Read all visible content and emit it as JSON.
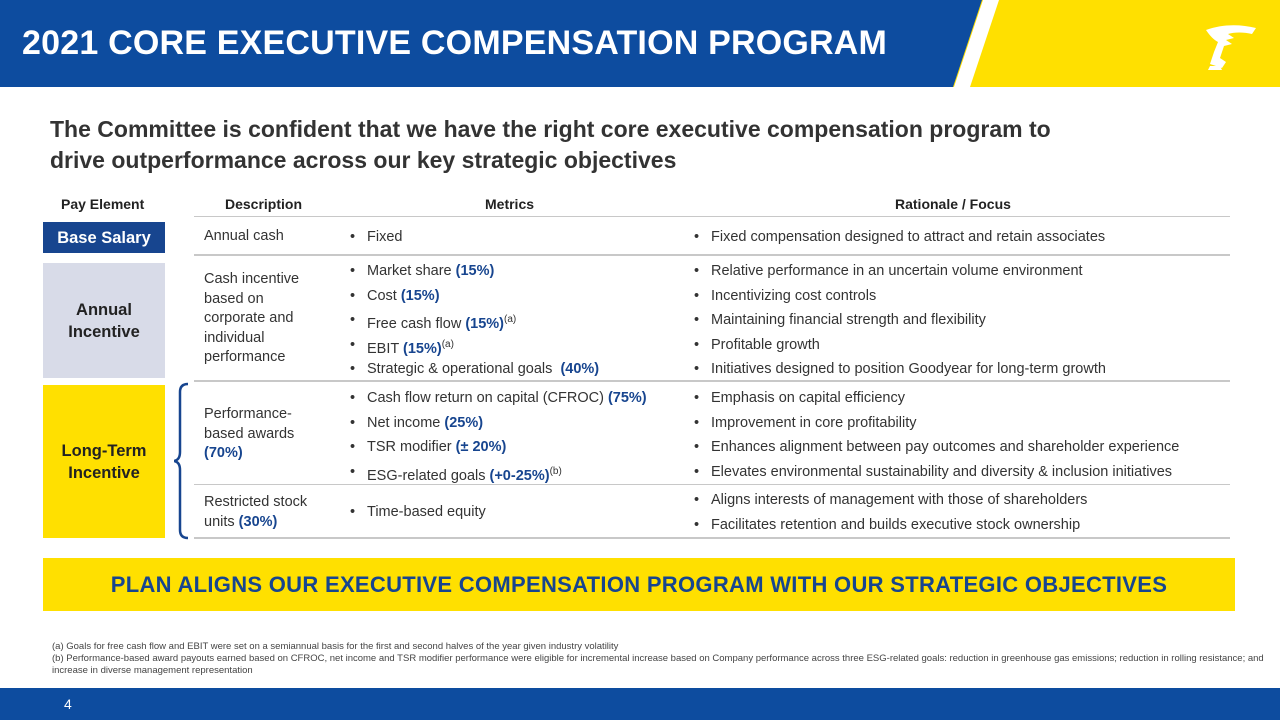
{
  "header": {
    "title": "2021 CORE EXECUTIVE COMPENSATION PROGRAM",
    "logo_icon": "winged-foot-logo-icon"
  },
  "subtitle": {
    "line1": "The Committee is confident that we have the right core executive compensation program to",
    "line2": "drive outperformance across our key strategic objectives"
  },
  "table": {
    "headers": {
      "pay_element": "Pay Element",
      "description": "Description",
      "metrics": "Metrics",
      "rationale": "Rationale / Focus"
    },
    "base_salary": {
      "label": "Base Salary",
      "description": "Annual cash",
      "metrics": [
        "Fixed"
      ],
      "rationale": [
        "Fixed compensation designed to attract and retain associates"
      ]
    },
    "annual_incentive": {
      "label_line1": "Annual",
      "label_line2": "Incentive",
      "description_lines": [
        "Cash incentive",
        "based on",
        "corporate and",
        "individual",
        "performance"
      ],
      "metrics": [
        {
          "text": "Market share ",
          "weight": "(15%)",
          "note": ""
        },
        {
          "text": "Cost ",
          "weight": "(15%)",
          "note": ""
        },
        {
          "text": "Free cash flow ",
          "weight": "(15%)",
          "note": "(a)"
        },
        {
          "text": "EBIT ",
          "weight": "(15%)",
          "note": "(a)"
        },
        {
          "text": "Strategic & operational goals  ",
          "weight": "(40%)",
          "note": ""
        }
      ],
      "rationale": [
        "Relative performance in an uncertain volume environment",
        "Incentivizing cost controls",
        "Maintaining financial strength and flexibility",
        "Profitable growth",
        "Initiatives designed to position Goodyear for long-term growth"
      ]
    },
    "long_term_incentive": {
      "label_line1": "Long-Term",
      "label_line2": "Incentive",
      "performance_awards": {
        "description_line1": "Performance-",
        "description_line2": "based awards",
        "description_weight": "(70%)",
        "metrics": [
          {
            "text": "Cash flow return on capital (CFROC) ",
            "weight": "(75%)",
            "note": ""
          },
          {
            "text": "Net income ",
            "weight": "(25%)",
            "note": ""
          },
          {
            "text": "TSR modifier ",
            "weight": "(± 20%)",
            "note": ""
          },
          {
            "text": "ESG-related goals ",
            "weight": "(+0-25%)",
            "note": "(b)"
          }
        ],
        "rationale": [
          "Emphasis on capital efficiency",
          "Improvement in core profitability",
          "Enhances alignment between pay outcomes and shareholder experience",
          "Elevates environmental sustainability and diversity & inclusion initiatives"
        ]
      },
      "restricted_stock": {
        "description_line1": "Restricted stock",
        "description_line2": "units ",
        "description_weight": "(30%)",
        "metrics": [
          "Time-based equity"
        ],
        "rationale": [
          "Aligns interests of management with those of shareholders",
          "Facilitates retention and builds executive stock ownership"
        ]
      }
    }
  },
  "banner": {
    "text": "PLAN ALIGNS OUR EXECUTIVE COMPENSATION PROGRAM WITH OUR STRATEGIC OBJECTIVES"
  },
  "footnotes": [
    "(a) Goals for free cash flow and EBIT were set on a semiannual basis for the first and second halves of the year given industry volatility",
    "(b) Performance-based award payouts earned based on CFROC, net income and TSR modifier performance were eligible for incremental increase based on Company performance across three ESG-related goals: reduction in greenhouse gas emissions; reduction in rolling resistance; and increase in diverse management representation"
  ],
  "footer": {
    "page_number": "4"
  },
  "colors": {
    "brand_blue": "#0d4c9f",
    "brand_yellow": "#ffe000",
    "highlight_blue": "#17458f",
    "base_salary_fill": "#17458f",
    "annual_incentive_fill": "#d8dbe8",
    "long_term_fill": "#ffe000"
  }
}
